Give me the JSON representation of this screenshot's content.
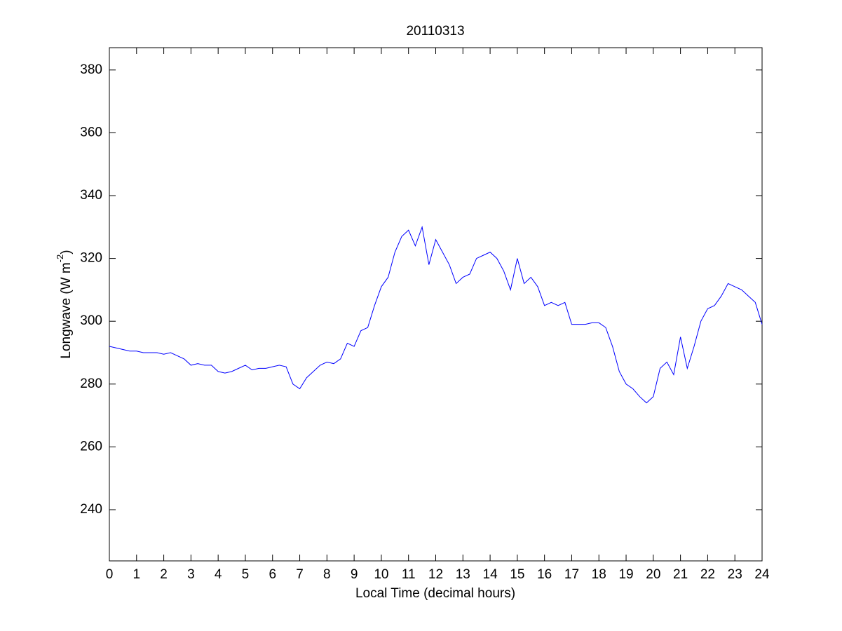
{
  "chart_data": {
    "type": "line",
    "title": "20110313",
    "x_label": "Local Time (decimal hours)",
    "y_label": {
      "base": "Longwave (W m",
      "superscript": "-2",
      "close": ")"
    },
    "xlim": [
      0,
      24
    ],
    "xticks": [
      0,
      1,
      2,
      3,
      4,
      5,
      6,
      7,
      8,
      9,
      10,
      11,
      12,
      13,
      14,
      15,
      16,
      17,
      18,
      19,
      20,
      21,
      22,
      23,
      24
    ],
    "ylim": [
      223.7,
      387.1
    ],
    "yticks": [
      240,
      260,
      280,
      300,
      320,
      340,
      360,
      380
    ],
    "grid": false,
    "x": [
      0,
      0.25,
      0.5,
      0.75,
      1,
      1.25,
      1.5,
      1.75,
      2,
      2.25,
      2.5,
      2.75,
      3,
      3.25,
      3.5,
      3.75,
      4,
      4.25,
      4.5,
      4.75,
      5,
      5.25,
      5.5,
      5.75,
      6,
      6.25,
      6.5,
      6.75,
      7,
      7.25,
      7.5,
      7.75,
      8,
      8.25,
      8.5,
      8.75,
      9,
      9.25,
      9.5,
      9.75,
      10,
      10.25,
      10.5,
      10.75,
      11,
      11.25,
      11.5,
      11.75,
      12,
      12.25,
      12.5,
      12.75,
      13,
      13.25,
      13.5,
      13.75,
      14,
      14.25,
      14.5,
      14.75,
      15,
      15.25,
      15.5,
      15.75,
      16,
      16.25,
      16.5,
      16.75,
      17,
      17.25,
      17.5,
      17.75,
      18,
      18.25,
      18.5,
      18.75,
      19,
      19.25,
      19.5,
      19.75,
      20,
      20.25,
      20.5,
      20.75,
      21,
      21.25,
      21.5,
      21.75,
      22,
      22.25,
      22.5,
      22.75,
      23,
      23.25,
      23.5,
      23.75,
      24
    ],
    "series": [
      {
        "color": "#0000ff",
        "values": [
          292,
          291.5,
          291,
          290.5,
          290.5,
          290,
          290,
          290,
          289.5,
          290,
          289,
          288,
          286,
          286.5,
          286,
          286,
          284,
          283.5,
          284,
          285,
          286,
          284.5,
          285,
          285,
          285.5,
          286,
          285.5,
          280,
          278.5,
          282,
          284,
          286,
          287,
          286.5,
          288,
          293,
          292,
          297,
          298,
          305,
          311,
          314,
          322,
          327,
          329,
          324,
          330,
          318,
          326,
          322,
          318,
          312,
          314,
          315,
          320,
          321,
          322,
          320,
          316,
          310,
          320,
          312,
          314,
          311,
          305,
          306,
          305,
          306,
          299,
          299,
          299,
          299.5,
          299.5,
          298,
          292,
          284,
          280,
          278.5,
          276,
          274,
          276,
          285,
          287,
          283,
          295,
          285,
          292,
          300,
          304,
          305,
          308,
          312,
          311,
          310,
          308,
          306,
          299
        ]
      }
    ]
  }
}
